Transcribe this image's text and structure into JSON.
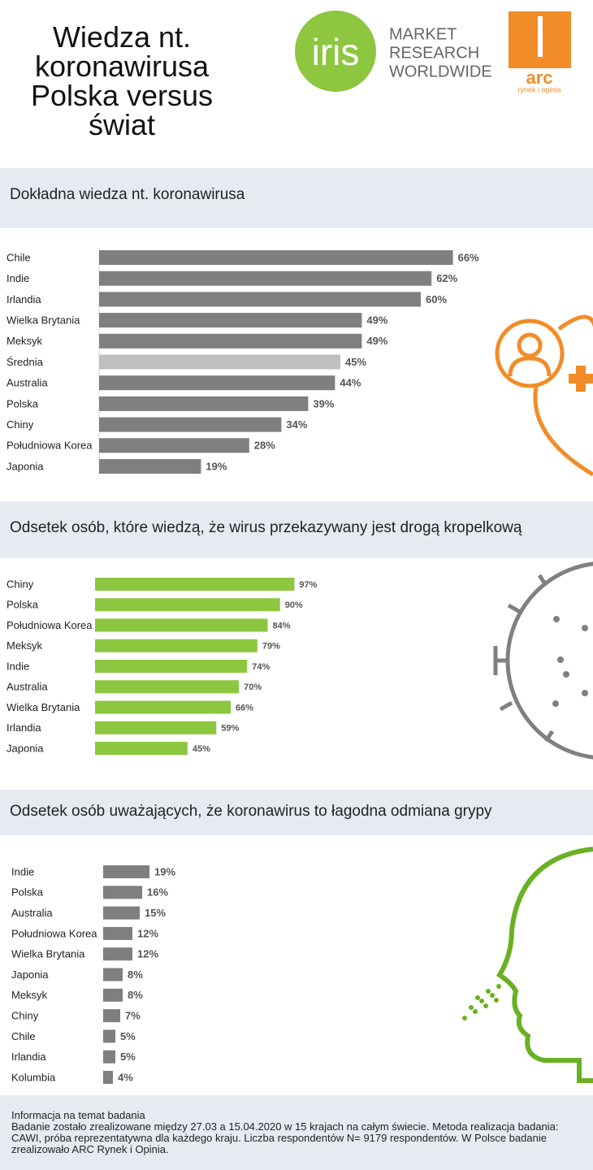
{
  "header": {
    "title": "Wiedza nt. koronawirusa Polska versus świat",
    "logo_iris": "iris",
    "logo_tagline": [
      "MARKET",
      "RESEARCH",
      "WORLDWIDE"
    ],
    "logo_arc": "arc",
    "logo_arc_sub": "rynek i opinia"
  },
  "chart_data": [
    {
      "type": "bar",
      "title": "Dokładna wiedza nt. koronawirusa",
      "categories": [
        "Chile",
        "Indie",
        "Irlandia",
        "Wielka Brytania",
        "Meksyk",
        "Średnia",
        "Australia",
        "Polska",
        "Chiny",
        "Południowa Korea",
        "Japonia"
      ],
      "values": [
        66,
        62,
        60,
        49,
        49,
        45,
        44,
        39,
        34,
        28,
        19
      ],
      "value_labels": [
        "66%",
        "62%",
        "60%",
        "49%",
        "49%",
        "45%",
        "44%",
        "39%",
        "34%",
        "28%",
        "19%"
      ],
      "colors": [
        "#7f7f7f",
        "#7f7f7f",
        "#7f7f7f",
        "#7f7f7f",
        "#7f7f7f",
        "#bfbfbf",
        "#7f7f7f",
        "#7f7f7f",
        "#7f7f7f",
        "#7f7f7f",
        "#7f7f7f"
      ]
    },
    {
      "type": "bar",
      "title": "Odsetek osób, które wiedzą, że wirus przekazywany jest drogą kropelkową",
      "categories": [
        "Chiny",
        "Polska",
        "Południowa Korea",
        "Meksyk",
        "Indie",
        "Australia",
        "Wielka Brytania",
        "Irlandia",
        "Japonia"
      ],
      "values": [
        97,
        90,
        84,
        79,
        74,
        70,
        66,
        59,
        45
      ],
      "value_labels": [
        "97%",
        "90%",
        "84%",
        "79%",
        "74%",
        "70%",
        "66%",
        "59%",
        "45%"
      ],
      "color": "#8dc63f"
    },
    {
      "type": "bar",
      "title": "Odsetek osób uważających, że koronawirus to łagodna odmiana grypy",
      "categories": [
        "Indie",
        "Polska",
        "Australia",
        "Południowa Korea",
        "Wielka Brytania",
        "Japonia",
        "Meksyk",
        "Chiny",
        "Chile",
        "Irlandia",
        "Kolumbia"
      ],
      "values": [
        19,
        16,
        15,
        12,
        12,
        8,
        8,
        7,
        5,
        5,
        4
      ],
      "value_labels": [
        "19%",
        "16%",
        "15%",
        "12%",
        "12%",
        "8%",
        "8%",
        "7%",
        "5%",
        "5%",
        "4%"
      ],
      "color": "#7f7f7f"
    }
  ],
  "footer": {
    "title": "Informacja na temat badania",
    "text": "Badanie zostało zrealizowane między 27.03 a 15.04.2020 w 15 krajach na całym świecie. Metoda realizacja badania: CAWI, próba reprezentatywna dla każdego kraju. Liczba respondentów N= 9179 respondentów. W Polsce badanie zrealizowało ARC Rynek i Opinia."
  }
}
